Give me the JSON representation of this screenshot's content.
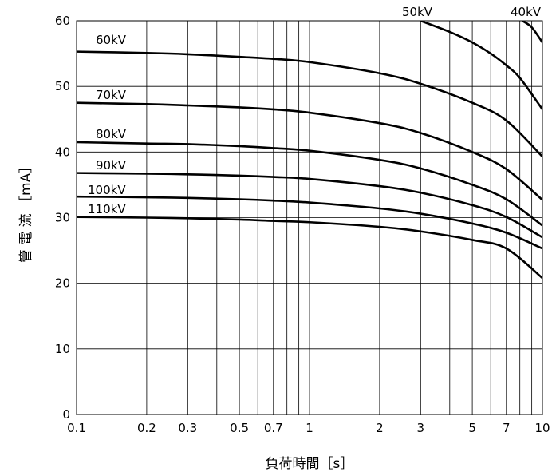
{
  "chart_data": {
    "type": "line",
    "xlabel": "負荷時間［s］",
    "ylabel": "管 電 流 ［mA］",
    "x_scale": "log",
    "xlim": [
      0.1,
      10
    ],
    "ylim": [
      0,
      60
    ],
    "grid": true,
    "x_ticks": [
      {
        "value": 0.1,
        "label": "0.1"
      },
      {
        "value": 0.2,
        "label": "0.2"
      },
      {
        "value": 0.3,
        "label": "0.3"
      },
      {
        "value": 0.5,
        "label": "0.5"
      },
      {
        "value": 0.7,
        "label": "0.7"
      },
      {
        "value": 1,
        "label": "1"
      },
      {
        "value": 2,
        "label": "2"
      },
      {
        "value": 3,
        "label": "3"
      },
      {
        "value": 5,
        "label": "5"
      },
      {
        "value": 7,
        "label": "7"
      },
      {
        "value": 10,
        "label": "10"
      }
    ],
    "x_grid": [
      0.1,
      0.2,
      0.3,
      0.4,
      0.5,
      0.6,
      0.7,
      0.8,
      0.9,
      1,
      2,
      3,
      4,
      5,
      6,
      7,
      8,
      9,
      10
    ],
    "y_ticks": [
      {
        "value": 0,
        "label": "0"
      },
      {
        "value": 10,
        "label": "10"
      },
      {
        "value": 20,
        "label": "20"
      },
      {
        "value": 30,
        "label": "30"
      },
      {
        "value": 40,
        "label": "40"
      },
      {
        "value": 50,
        "label": "50"
      },
      {
        "value": 60,
        "label": "60"
      }
    ],
    "series": [
      {
        "name": "40kV",
        "x": [
          8.2,
          9.0,
          10.0
        ],
        "y": [
          60.0,
          59.0,
          56.7
        ]
      },
      {
        "name": "50kV",
        "x": [
          3.0,
          4.0,
          5.0,
          6.0,
          7.0,
          8.0,
          10.0
        ],
        "y": [
          60.0,
          58.3,
          56.7,
          55.0,
          53.2,
          51.3,
          46.5
        ]
      },
      {
        "name": "60kV",
        "x": [
          0.1,
          0.2,
          0.3,
          0.5,
          0.7,
          1,
          2,
          3,
          5,
          7,
          10
        ],
        "y": [
          55.3,
          55.1,
          54.9,
          54.5,
          54.2,
          53.7,
          52.0,
          50.4,
          47.5,
          44.8,
          39.3
        ]
      },
      {
        "name": "70kV",
        "x": [
          0.1,
          0.2,
          0.3,
          0.5,
          0.7,
          1,
          2,
          3,
          5,
          7,
          10
        ],
        "y": [
          47.5,
          47.3,
          47.1,
          46.8,
          46.5,
          46.0,
          44.4,
          42.9,
          40.0,
          37.4,
          32.7
        ]
      },
      {
        "name": "80kV",
        "x": [
          0.1,
          0.2,
          0.3,
          0.5,
          0.7,
          1,
          2,
          3,
          5,
          7,
          10
        ],
        "y": [
          41.5,
          41.3,
          41.2,
          40.9,
          40.6,
          40.2,
          38.8,
          37.5,
          35.0,
          32.8,
          28.8
        ]
      },
      {
        "name": "90kV",
        "x": [
          0.1,
          0.2,
          0.3,
          0.5,
          0.7,
          1,
          2,
          3,
          5,
          7,
          10
        ],
        "y": [
          36.8,
          36.7,
          36.6,
          36.4,
          36.2,
          35.9,
          34.8,
          33.8,
          31.9,
          30.1,
          27.0
        ]
      },
      {
        "name": "100kV",
        "x": [
          0.1,
          0.2,
          0.3,
          0.5,
          0.7,
          1,
          2,
          3,
          5,
          7,
          10
        ],
        "y": [
          33.2,
          33.1,
          33.0,
          32.8,
          32.6,
          32.3,
          31.4,
          30.6,
          29.1,
          27.7,
          25.3
        ]
      },
      {
        "name": "110kV",
        "x": [
          0.1,
          0.2,
          0.3,
          0.5,
          0.7,
          1,
          2,
          3,
          5,
          7,
          10
        ],
        "y": [
          30.1,
          30.0,
          29.9,
          29.7,
          29.5,
          29.3,
          28.6,
          27.9,
          26.6,
          25.3,
          20.8
        ]
      }
    ]
  }
}
